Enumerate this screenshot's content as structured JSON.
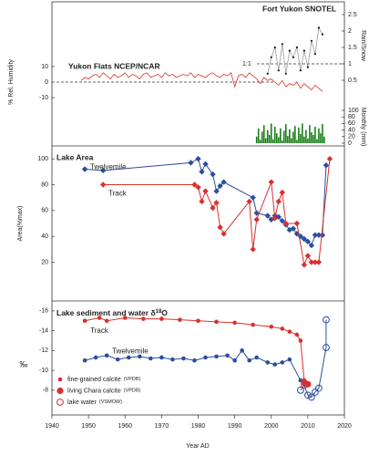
{
  "chart_data": [
    {
      "type": "line",
      "title": "Yukon Flats NCEP/NCAR",
      "ylabel": "% Rel. Humidity",
      "xlim": [
        1940,
        2020
      ],
      "ylim": [
        -15,
        15
      ],
      "yticks": [
        10,
        0,
        -10
      ],
      "ref_line": 0,
      "y2label": "Rain/Snow",
      "y2lim": [
        0.3,
        2.7
      ],
      "y2ticks": [
        0.5,
        1,
        1.5,
        2,
        2.5
      ],
      "y2_ref_line": 1,
      "y2_ref_label": "1:1",
      "y2_title": "Fort Yukon SNOTEL",
      "y3label": "Monthly (mm)",
      "y3lim": [
        0,
        100
      ],
      "y3ticks": [
        0,
        20,
        40,
        60,
        80,
        100
      ],
      "series": [
        {
          "type": "line",
          "color": "#d9302c",
          "x": [
            1948,
            1949,
            1950,
            1951,
            1952,
            1953,
            1954,
            1955,
            1956,
            1957,
            1958,
            1959,
            1960,
            1961,
            1962,
            1963,
            1964,
            1965,
            1966,
            1967,
            1968,
            1969,
            1970,
            1971,
            1972,
            1973,
            1974,
            1975,
            1976,
            1977,
            1978,
            1979,
            1980,
            1981,
            1982,
            1983,
            1984,
            1985,
            1986,
            1987,
            1988,
            1989,
            1990,
            1991,
            1992,
            1993,
            1994,
            1995,
            1996,
            1997,
            1998,
            1999,
            2000,
            2001,
            2002,
            2003,
            2004,
            2005,
            2006,
            2007,
            2008,
            2009,
            2010,
            2011,
            2012,
            2013,
            2014
          ],
          "values": [
            1,
            3,
            2,
            4,
            5,
            3,
            6,
            4,
            2,
            5,
            3,
            4,
            6,
            3,
            5,
            4,
            2,
            5,
            6,
            3,
            4,
            5,
            3,
            6,
            4,
            5,
            3,
            4,
            5,
            4,
            6,
            3,
            5,
            4,
            3,
            5,
            6,
            4,
            3,
            5,
            4,
            6,
            -3,
            4,
            5,
            3,
            6,
            4,
            2,
            -1,
            3,
            1,
            2,
            0,
            -2,
            1,
            -3,
            -1,
            -2,
            0,
            -4,
            -1,
            -3,
            -5,
            -2,
            -4,
            -6
          ]
        },
        {
          "type": "line",
          "axis": "y2",
          "color": "#999999",
          "marker_color": "#111111",
          "x": [
            1999,
            2000,
            2001,
            2002,
            2003,
            2004,
            2005,
            2006,
            2007,
            2008,
            2009,
            2010,
            2011,
            2012,
            2013,
            2014
          ],
          "values": [
            0.7,
            1.2,
            1.5,
            0.8,
            1.6,
            0.7,
            1.4,
            1.2,
            1.5,
            0.8,
            1.4,
            0.9,
            1.7,
            1.3,
            2.1,
            1.9
          ]
        },
        {
          "type": "bar",
          "axis": "y3",
          "color": "#1a7f1a",
          "x": [
            1996,
            1996.5,
            1997,
            1997.5,
            1998,
            1998.5,
            1999,
            1999.5,
            2000,
            2000.5,
            2001,
            2001.5,
            2002,
            2002.5,
            2003,
            2003.5,
            2004,
            2004.5,
            2005,
            2005.5,
            2006,
            2006.5,
            2007,
            2007.5,
            2008,
            2008.5,
            2009,
            2009.5,
            2010,
            2010.5,
            2011,
            2011.5,
            2012,
            2012.5,
            2013,
            2013.5,
            2014,
            2014.5
          ],
          "values": [
            20,
            45,
            10,
            35,
            55,
            15,
            40,
            25,
            60,
            12,
            50,
            30,
            18,
            45,
            8,
            38,
            58,
            22,
            42,
            15,
            35,
            52,
            10,
            48,
            28,
            60,
            20,
            40,
            14,
            55,
            33,
            25,
            50,
            12,
            45,
            30,
            58,
            20
          ]
        }
      ]
    },
    {
      "type": "line",
      "title": "Lake Area",
      "ylabel": "Area(%max)",
      "xlim": [
        1940,
        2020
      ],
      "ylim": [
        -10,
        110
      ],
      "yticks": [
        20,
        40,
        60,
        80,
        100
      ],
      "series": [
        {
          "name": "Twelvemile",
          "color": "#2b4ea0",
          "marker": "diamond",
          "x": [
            1949,
            1954,
            1978,
            1980,
            1981,
            1982,
            1984,
            1985,
            1986,
            1987,
            1995,
            1996,
            1999,
            2000,
            2001,
            2002,
            2003,
            2004,
            2005,
            2006,
            2007,
            2008,
            2009,
            2010,
            2011,
            2012,
            2013,
            2014,
            2015
          ],
          "values": [
            92,
            91,
            97,
            100,
            90,
            96,
            88,
            75,
            79,
            82,
            70,
            58,
            56,
            53,
            56,
            55,
            52,
            49,
            45,
            46,
            42,
            40,
            38,
            36,
            33,
            41,
            41,
            41,
            95
          ]
        },
        {
          "name": "Track",
          "color": "#d9302c",
          "marker": "diamond",
          "x": [
            1954,
            1979,
            1980,
            1981,
            1982,
            1984,
            1985,
            1986,
            1987,
            1994,
            1995,
            1996,
            2000,
            2001,
            2002,
            2003,
            2004,
            2007,
            2009,
            2010,
            2011,
            2012,
            2013,
            2016
          ],
          "values": [
            80,
            80,
            78,
            67,
            75,
            62,
            66,
            47,
            42,
            67,
            30,
            53,
            82,
            54,
            67,
            74,
            50,
            50,
            18,
            25,
            20,
            20,
            20,
            100
          ]
        }
      ]
    },
    {
      "type": "line",
      "title": [
        "Lake sediment and water δ",
        "18",
        "O"
      ],
      "ylabel": "‰",
      "xlabel": "Year AD",
      "xlim": [
        1940,
        2020
      ],
      "xticks": [
        1940,
        1950,
        1960,
        1970,
        1980,
        1990,
        2000,
        2010,
        2020
      ],
      "ylim": [
        -5.5,
        -17
      ],
      "yticks": [
        -16,
        -14,
        -12,
        -10,
        -8
      ],
      "series": [
        {
          "name": "Track",
          "color": "#d9302c",
          "marker": "dot",
          "x": [
            1949,
            1953,
            1955,
            1960,
            1965,
            1970,
            1975,
            1980,
            1985,
            1990,
            1995,
            2000,
            2003,
            2005,
            2007,
            2008,
            2009
          ],
          "values": [
            -15,
            -15.3,
            -15,
            -15.3,
            -15.2,
            -15.2,
            -15.1,
            -15,
            -14.9,
            -14.8,
            -14.6,
            -14.4,
            -14.2,
            -13.9,
            -13.6,
            -13,
            -9
          ]
        },
        {
          "name": "Twelvemile",
          "color": "#2b4ea0",
          "marker": "dot",
          "x": [
            1949,
            1952,
            1955,
            1958,
            1961,
            1964,
            1967,
            1970,
            1973,
            1976,
            1979,
            1982,
            1985,
            1988,
            1990,
            1992,
            1994,
            1996,
            1999,
            2001,
            2003,
            2005,
            2008,
            2009
          ],
          "values": [
            -11,
            -11.3,
            -11.5,
            -11.1,
            -11.3,
            -11.4,
            -11.2,
            -11.3,
            -11.1,
            -11.2,
            -11,
            -11.3,
            -11.4,
            -11.5,
            -11,
            -12,
            -11,
            -11.3,
            -10.8,
            -10.6,
            -10.8,
            -11.1,
            -9,
            -8.6
          ]
        },
        {
          "color": "#d9302c",
          "marker": "big",
          "x": [
            2009,
            2010
          ],
          "values": [
            -8.8,
            -8.6
          ]
        },
        {
          "color": "#2b4ea0",
          "marker": "ring",
          "x": [
            2008,
            2009,
            2010,
            2011,
            2012,
            2013,
            2015,
            2015
          ],
          "values": [
            -8,
            -8.5,
            -7.5,
            -7.3,
            -7.8,
            -8.2,
            -12.3,
            -15.1
          ]
        },
        {
          "color": "#d9302c",
          "marker": "ring",
          "x": [
            2009
          ],
          "values": [
            -8.5
          ]
        }
      ],
      "legend_color": "#d9302c",
      "legend": [
        {
          "label": "fine-grained calcite",
          "unit": "(VPDB)",
          "marker": "dot"
        },
        {
          "label": "living Chara calcite",
          "unit": "(VPDB)",
          "marker": "big"
        },
        {
          "label": "lake water",
          "unit": "(VSMOW)",
          "marker": "ring"
        }
      ]
    }
  ]
}
